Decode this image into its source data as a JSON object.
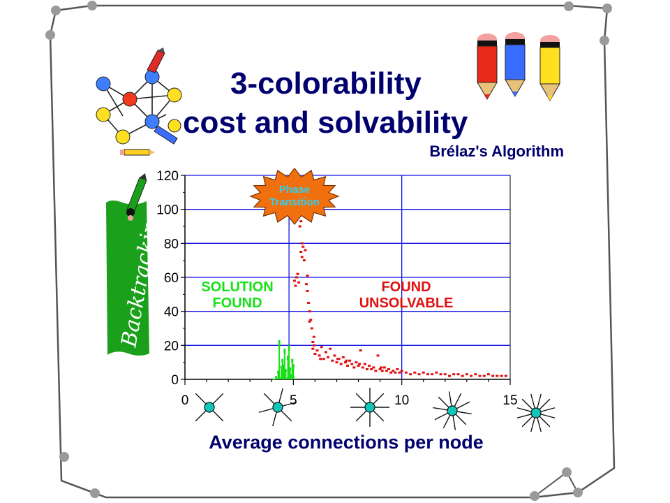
{
  "title_line1": "3-colorability",
  "title_line2": "cost and solvability",
  "subtitle": "Brélaz's Algorithm",
  "side_label": "Backtracking",
  "colors": {
    "title": "#00006e",
    "grid": "#1010e0",
    "unsolvable": "#e01010",
    "solution": "#18e018",
    "burst": "#f07010",
    "burst_text": "#30d0f0",
    "node_fill": "#10c8b8",
    "banner": "#1aa01a",
    "frame": "#555555",
    "corner_node": "#9a9a9a"
  },
  "icons": [
    "graph-icon",
    "pencil-icon",
    "pencils-icon",
    "star-node-icon"
  ],
  "chart_data": {
    "type": "scatter",
    "xlabel": "Average connections per node",
    "ylabel": "",
    "xlim": [
      0,
      15
    ],
    "ylim": [
      0,
      120
    ],
    "x_ticks": [
      "0",
      "5",
      "10",
      "15"
    ],
    "y_ticks": [
      "0",
      "20",
      "40",
      "60",
      "80",
      "100",
      "120"
    ],
    "grid": true,
    "vertical_lines": [
      4.8,
      10
    ],
    "annotations": [
      {
        "name": "phase",
        "lines": [
          "Phase",
          "Transition"
        ]
      },
      {
        "name": "solution",
        "lines": [
          "SOLUTION",
          "FOUND"
        ]
      },
      {
        "name": "unsolvable",
        "lines": [
          "FOUND",
          "UNSOLVABLE"
        ]
      }
    ],
    "series": [
      {
        "name": "SOLUTION FOUND",
        "points": [
          [
            4.1,
            0.5
          ],
          [
            4.2,
            2
          ],
          [
            4.3,
            5
          ],
          [
            4.35,
            23
          ],
          [
            4.4,
            1
          ],
          [
            4.45,
            8
          ],
          [
            4.5,
            12
          ],
          [
            4.5,
            3
          ],
          [
            4.55,
            9
          ],
          [
            4.6,
            18
          ],
          [
            4.65,
            6
          ],
          [
            4.7,
            1
          ],
          [
            4.75,
            14
          ],
          [
            4.8,
            20
          ],
          [
            4.85,
            7
          ],
          [
            4.9,
            3
          ],
          [
            4.95,
            12
          ],
          [
            5.0,
            9
          ],
          [
            5.0,
            2
          ],
          [
            4.6,
            2
          ],
          [
            4.3,
            1
          ],
          [
            4.8,
            4
          ]
        ]
      },
      {
        "name": "FOUND UNSOLVABLE",
        "points": [
          [
            5.05,
            58
          ],
          [
            5.1,
            55
          ],
          [
            5.15,
            60
          ],
          [
            5.2,
            62
          ],
          [
            5.25,
            57
          ],
          [
            5.3,
            90
          ],
          [
            5.35,
            93
          ],
          [
            5.35,
            75
          ],
          [
            5.4,
            80
          ],
          [
            5.4,
            72
          ],
          [
            5.45,
            78
          ],
          [
            5.5,
            70
          ],
          [
            5.55,
            76
          ],
          [
            5.6,
            56
          ],
          [
            5.65,
            52
          ],
          [
            5.65,
            61
          ],
          [
            5.7,
            45
          ],
          [
            5.75,
            40
          ],
          [
            5.75,
            34
          ],
          [
            5.8,
            35
          ],
          [
            5.85,
            30
          ],
          [
            5.9,
            22
          ],
          [
            5.9,
            18
          ],
          [
            5.95,
            20
          ],
          [
            6.0,
            15
          ],
          [
            6.1,
            17
          ],
          [
            6.2,
            14
          ],
          [
            6.3,
            19
          ],
          [
            6.4,
            12
          ],
          [
            6.5,
            16
          ],
          [
            6.6,
            13
          ],
          [
            6.7,
            18
          ],
          [
            6.8,
            11
          ],
          [
            6.9,
            14
          ],
          [
            7.0,
            10
          ],
          [
            7.1,
            12
          ],
          [
            7.2,
            9
          ],
          [
            7.3,
            13
          ],
          [
            7.4,
            10
          ],
          [
            7.5,
            8
          ],
          [
            7.6,
            11
          ],
          [
            7.7,
            9
          ],
          [
            7.8,
            7
          ],
          [
            7.9,
            10
          ],
          [
            8.0,
            8
          ],
          [
            8.1,
            17
          ],
          [
            8.2,
            7
          ],
          [
            8.3,
            9
          ],
          [
            8.4,
            6
          ],
          [
            8.5,
            8
          ],
          [
            8.6,
            6
          ],
          [
            8.7,
            7
          ],
          [
            8.8,
            5
          ],
          [
            8.9,
            14
          ],
          [
            9.0,
            6
          ],
          [
            9.1,
            5
          ],
          [
            9.2,
            7
          ],
          [
            9.3,
            5
          ],
          [
            9.4,
            6
          ],
          [
            9.5,
            4
          ],
          [
            9.6,
            5
          ],
          [
            9.7,
            4
          ],
          [
            9.8,
            6
          ],
          [
            9.9,
            4
          ],
          [
            10.0,
            5
          ],
          [
            10.2,
            4
          ],
          [
            10.4,
            3
          ],
          [
            10.6,
            4
          ],
          [
            10.8,
            3
          ],
          [
            11.0,
            4
          ],
          [
            11.2,
            3
          ],
          [
            11.4,
            3
          ],
          [
            11.6,
            4
          ],
          [
            11.8,
            3
          ],
          [
            12.0,
            3
          ],
          [
            12.2,
            2
          ],
          [
            12.4,
            3
          ],
          [
            12.6,
            3
          ],
          [
            12.8,
            2
          ],
          [
            13.0,
            3
          ],
          [
            13.2,
            2
          ],
          [
            13.4,
            3
          ],
          [
            13.6,
            2
          ],
          [
            13.8,
            2
          ],
          [
            14.0,
            3
          ],
          [
            14.2,
            2
          ],
          [
            14.4,
            2
          ],
          [
            14.6,
            2
          ],
          [
            14.8,
            2
          ],
          [
            7.05,
            12
          ],
          [
            7.45,
            11
          ],
          [
            8.05,
            9
          ],
          [
            9.05,
            7
          ],
          [
            6.25,
            12
          ],
          [
            5.95,
            25
          ]
        ]
      }
    ]
  }
}
